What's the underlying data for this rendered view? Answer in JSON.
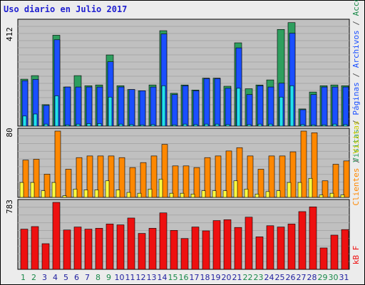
{
  "title": "Uso diario en Julio 2017",
  "colors": {
    "visits": "#2e9e5e",
    "pages": "#1a4fff",
    "hits": "#20e0ee",
    "visitors": "#ff8800",
    "clients": "#ffff40",
    "kb": "#ee1010",
    "weekend_label": "#1a8a4a",
    "weekday_label": "#2020a0"
  },
  "top_panel": {
    "ymax_label": "412",
    "side_labels": [
      {
        "text": "Visitas",
        "color": "#2e9e5e"
      },
      {
        "text": " / ",
        "color": "#555555"
      },
      {
        "text": "Páginas",
        "color": "#1a4fff"
      },
      {
        "text": " / ",
        "color": "#555555"
      },
      {
        "text": "Archivos",
        "color": "#1a4fff"
      },
      {
        "text": " / ",
        "color": "#555555"
      },
      {
        "text": "Accesos",
        "color": "#1a8a4a"
      }
    ]
  },
  "mid_panel": {
    "ymax_label": "80",
    "side_labels": [
      {
        "text": "Clientes",
        "color": "#ff8800"
      },
      {
        "text": " / ",
        "color": "#555555"
      },
      {
        "text": "Visitas",
        "color": "#cccc00"
      }
    ]
  },
  "bottom_panel": {
    "ymax_label": "783",
    "side_labels": [
      {
        "text": "kB F",
        "color": "#ee1010"
      }
    ]
  },
  "chart_data": {
    "type": "bar",
    "x": [
      "1",
      "2",
      "3",
      "4",
      "5",
      "6",
      "7",
      "8",
      "9",
      "10",
      "11",
      "12",
      "13",
      "14",
      "15",
      "16",
      "17",
      "18",
      "19",
      "20",
      "21",
      "22",
      "23",
      "24",
      "25",
      "26",
      "27",
      "28",
      "29",
      "30",
      "31"
    ],
    "weekend_days": [
      "1",
      "2",
      "8",
      "9",
      "15",
      "16",
      "22",
      "23",
      "29",
      "30"
    ],
    "panels": [
      {
        "name": "top",
        "ymax": 412,
        "series": [
          {
            "values": [
              186,
              200,
              85,
              360,
              155,
              200,
              160,
              163,
              282,
              160,
              145,
              140,
              163,
              378,
              130,
              163,
              143,
              190,
              190,
              158,
              330,
              148,
              163,
              183,
              383,
              410,
              68,
              135,
              160,
              163,
              160
            ]
          },
          {
            "values": [
              180,
              185,
              82,
              342,
              155,
              155,
              155,
              155,
              255,
              155,
              145,
              140,
              155,
              365,
              125,
              160,
              140,
              188,
              188,
              150,
              310,
              125,
              160,
              155,
              170,
              368,
              65,
              125,
              155,
              155,
              155
            ]
          },
          {
            "values": [
              40,
              48,
              8,
              120,
              5,
              8,
              10,
              10,
              115,
              8,
              6,
              5,
              6,
              160,
              5,
              8,
              6,
              8,
              8,
              6,
              150,
              6,
              8,
              8,
              115,
              160,
              6,
              5,
              5,
              8,
              6
            ]
          }
        ]
      },
      {
        "name": "mid",
        "ymax": 80,
        "series": [
          {
            "values": [
              45,
              46,
              28,
              80,
              34,
              48,
              50,
              50,
              50,
              48,
              36,
              42,
              50,
              64,
              38,
              38,
              36,
              48,
              50,
              56,
              60,
              50,
              34,
              50,
              50,
              55,
              80,
              78,
              20,
              40,
              44
            ]
          },
          {
            "values": [
              18,
              18,
              8,
              18,
              2,
              10,
              9,
              9,
              20,
              9,
              6,
              5,
              10,
              22,
              5,
              5,
              4,
              8,
              8,
              8,
              20,
              10,
              4,
              7,
              8,
              18,
              18,
              23,
              3,
              5,
              3
            ]
          }
        ]
      },
      {
        "name": "bottom",
        "ymax": 783,
        "series": [
          {
            "values": [
              470,
              500,
              300,
              783,
              460,
              495,
              470,
              480,
              530,
              520,
              600,
              420,
              480,
              660,
              455,
              360,
              495,
              450,
              570,
              580,
              490,
              610,
              380,
              510,
              495,
              530,
              675,
              730,
              250,
              400,
              465
            ]
          }
        ]
      }
    ]
  }
}
